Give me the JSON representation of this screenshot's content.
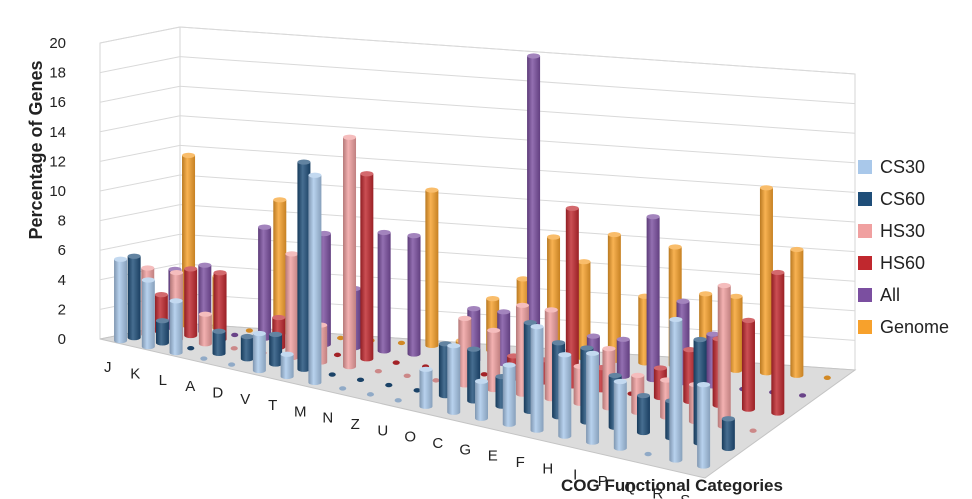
{
  "chart_data": {
    "type": "bar",
    "style": "3d-clustered-columns",
    "xlabel": "COG Functional Categories",
    "ylabel": "Percentage of Genes",
    "ylim": [
      0,
      20
    ],
    "yticks": [
      "0",
      "2",
      "4",
      "6",
      "8",
      "10",
      "12",
      "14",
      "16",
      "18",
      "20"
    ],
    "grid": true,
    "legend_position": "right",
    "categories": [
      "J",
      "K",
      "L",
      "A",
      "D",
      "V",
      "T",
      "M",
      "N",
      "Z",
      "U",
      "O",
      "C",
      "G",
      "E",
      "F",
      "H",
      "I",
      "P",
      "Q",
      "R",
      "S"
    ],
    "series": [
      {
        "name": "CS30",
        "color": "#a9c8ea",
        "values": [
          5.5,
          4.5,
          3.5,
          0,
          0,
          2.5,
          1.5,
          14.0,
          0,
          0,
          0,
          2.5,
          4.5,
          2.5,
          4.0,
          7.0,
          5.5,
          6.0,
          4.5,
          0,
          9.5,
          5.5
        ]
      },
      {
        "name": "CS60",
        "color": "#1f4e79",
        "values": [
          5.5,
          1.5,
          0,
          1.5,
          1.5,
          2.0,
          14.0,
          0,
          0,
          0,
          0,
          3.5,
          3.5,
          2.0,
          6.0,
          5.0,
          5.0,
          3.5,
          2.5,
          2.5,
          7.0,
          2.0
        ]
      },
      {
        "name": "HS30",
        "color": "#f0a0a0",
        "values": [
          4.5,
          4.5,
          2.0,
          0,
          0,
          7.0,
          2.5,
          15.5,
          0,
          0,
          0,
          4.5,
          4.0,
          6.0,
          6.0,
          2.5,
          4.0,
          2.5,
          2.5,
          2.5,
          9.5,
          0
        ]
      },
      {
        "name": "HS60",
        "color": "#c0282e",
        "values": [
          2.5,
          4.5,
          4.5,
          0,
          2.0,
          1.5,
          0,
          12.5,
          0,
          0,
          0,
          0,
          1.5,
          1.5,
          12.0,
          1.5,
          0,
          2.0,
          3.5,
          4.5,
          6.0,
          9.5
        ]
      },
      {
        "name": "All",
        "color": "#7b4fa0",
        "values": [
          4.0,
          4.5,
          0,
          7.5,
          0,
          7.5,
          4.0,
          8.0,
          8.0,
          0,
          3.5,
          3.5,
          21.0,
          0,
          2.5,
          2.5,
          11.0,
          5.5,
          3.5,
          0,
          0,
          0
        ]
      },
      {
        "name": "Genome",
        "color": "#f7a12c",
        "values": [
          11.5,
          3.5,
          0,
          9.0,
          1.5,
          0,
          0,
          0,
          10.5,
          0.5,
          3.5,
          5.0,
          8.0,
          6.5,
          8.5,
          4.5,
          8.0,
          5.0,
          5.0,
          12.5,
          8.5,
          0
        ]
      }
    ]
  }
}
